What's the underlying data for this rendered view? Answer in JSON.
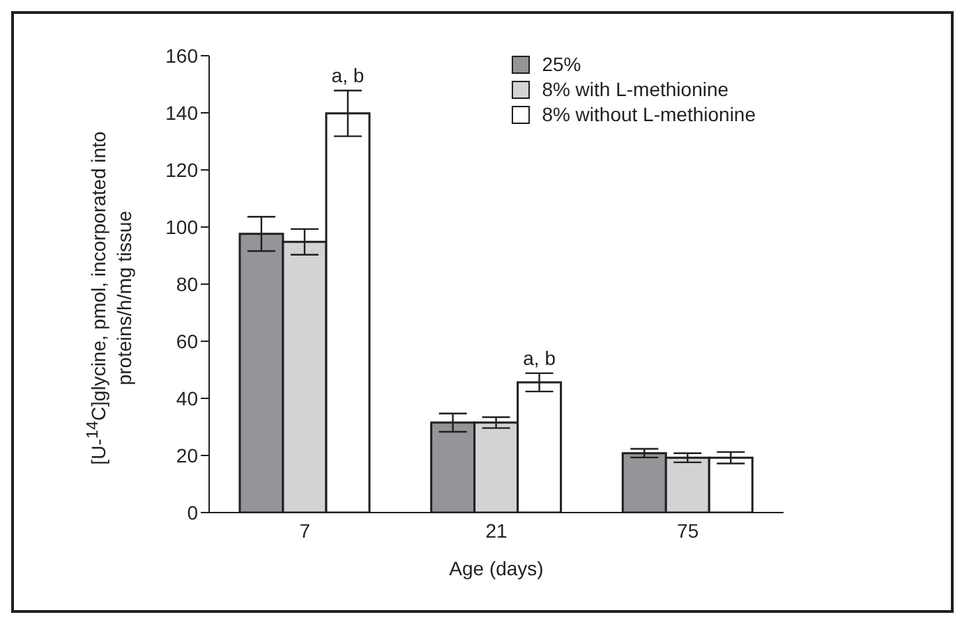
{
  "chart_data": {
    "type": "bar",
    "xlabel": "Age (days)",
    "ylabel": "[U-$^{14}$C]glycine, pmol, incorporated into proteins/h/mg tissue",
    "categories": [
      "7",
      "21",
      "75"
    ],
    "series": [
      {
        "name": "25%",
        "color": "#939598",
        "values": [
          97.6,
          31.5,
          20.8
        ],
        "errors": [
          6,
          3.2,
          1.5
        ]
      },
      {
        "name": "8% with L-methionine",
        "color": "#d1d3d4",
        "values": [
          94.8,
          31.5,
          19.2
        ],
        "errors": [
          4.5,
          1.9,
          1.6
        ]
      },
      {
        "name": "8% without L-methionine",
        "color": "#ffffff",
        "values": [
          139.8,
          45.6,
          19.2
        ],
        "errors": [
          8,
          3.2,
          2
        ]
      }
    ],
    "ylim": [
      0,
      160
    ],
    "yticks": [
      0,
      20,
      40,
      60,
      80,
      100,
      120,
      140,
      160
    ],
    "legend": "top right",
    "annotations": [
      "a, b",
      "a, b"
    ]
  }
}
